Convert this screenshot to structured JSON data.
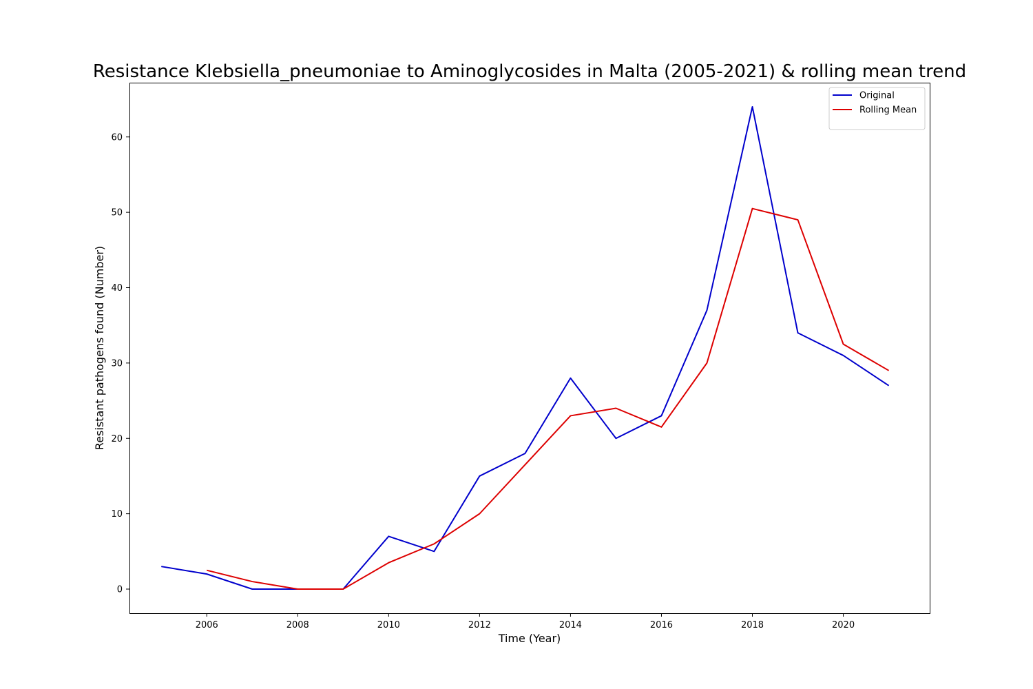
{
  "chart_data": {
    "type": "line",
    "title": "Resistance Klebsiella_pneumoniae to Aminoglycosides in Malta (2005-2021) & rolling mean trend",
    "xlabel": "Time (Year)",
    "ylabel": "Resistant pathogens found (Number)",
    "xlim": [
      2004.3,
      2021.9
    ],
    "ylim": [
      -3.2,
      67.2
    ],
    "x_ticks": [
      2006,
      2008,
      2010,
      2012,
      2014,
      2016,
      2018,
      2020
    ],
    "y_ticks": [
      0,
      10,
      20,
      30,
      40,
      50,
      60
    ],
    "grid": false,
    "legend_position": "top-right",
    "series": [
      {
        "name": "Original",
        "color": "#0000cc",
        "x": [
          2005,
          2006,
          2007,
          2008,
          2009,
          2010,
          2011,
          2012,
          2013,
          2014,
          2015,
          2016,
          2017,
          2018,
          2019,
          2020,
          2021
        ],
        "values": [
          3,
          2,
          0,
          0,
          0,
          7,
          5,
          15,
          18,
          28,
          20,
          23,
          37,
          64,
          34,
          31,
          27
        ]
      },
      {
        "name": "Rolling Mean",
        "color": "#dd0000",
        "x": [
          2006,
          2007,
          2008,
          2009,
          2010,
          2011,
          2012,
          2013,
          2014,
          2015,
          2016,
          2017,
          2018,
          2019,
          2020,
          2021
        ],
        "values": [
          2.5,
          1,
          0,
          0,
          3.5,
          6,
          10,
          16.5,
          23,
          24,
          21.5,
          30,
          50.5,
          49,
          32.5,
          29
        ]
      }
    ]
  }
}
